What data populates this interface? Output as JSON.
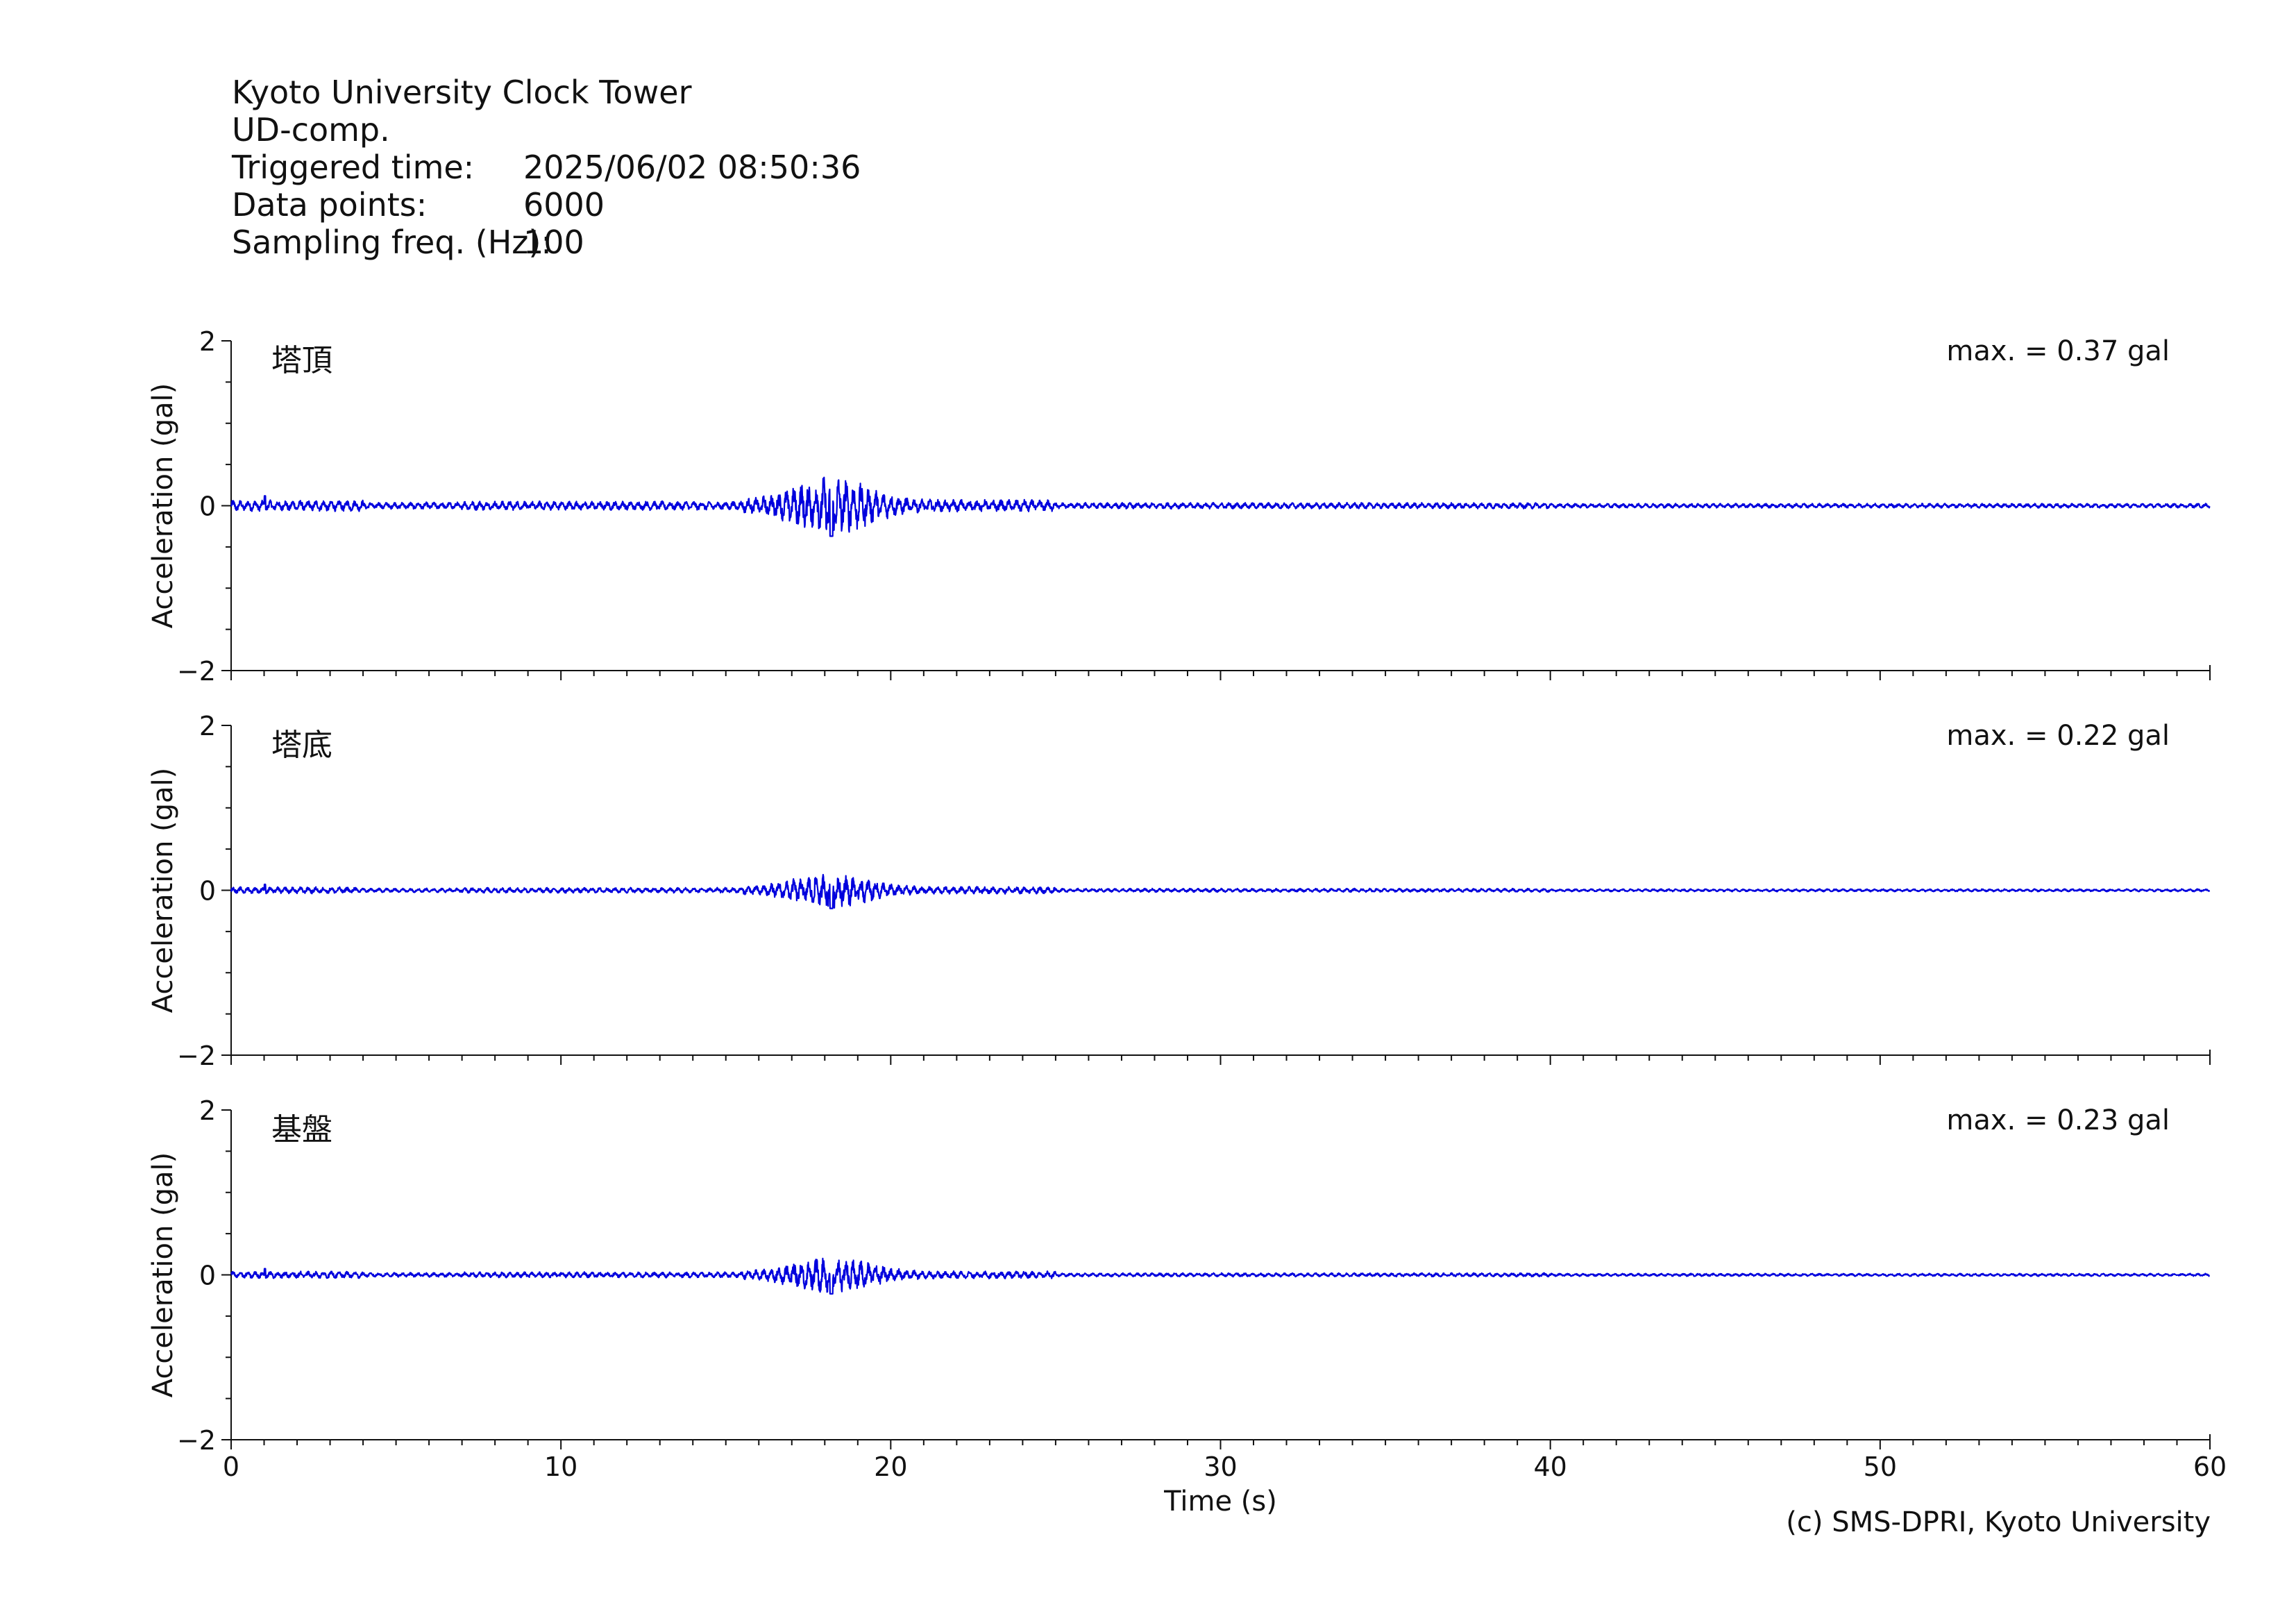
{
  "header": {
    "station": "Kyoto University Clock Tower",
    "component": "UD-comp.",
    "triggered_label": "Triggered time:",
    "triggered_value": "2025/06/02 08:50:36",
    "points_label": "Data points:",
    "points_value": "6000",
    "freq_label": "Sampling freq. (Hz):",
    "freq_value": "100"
  },
  "credit": "(c) SMS-DPRI, Kyoto University",
  "chart_data": {
    "type": "line",
    "color": "#0000dd",
    "xlabel": "Time (s)",
    "ylabel": "Acceleration (gal)",
    "xlim": [
      0,
      60
    ],
    "ylim": [
      -2,
      2
    ],
    "x_ticks": [
      0,
      10,
      20,
      30,
      40,
      50,
      60
    ],
    "y_ticks": [
      -2,
      0,
      2
    ],
    "y_tick_labels": [
      "−2",
      "0",
      "2"
    ],
    "panels": [
      {
        "name": "塔頂",
        "max_label": "max. = 0.37 gal",
        "max_value": 0.37
      },
      {
        "name": "塔底",
        "max_label": "max. = 0.22 gal",
        "max_value": 0.22
      },
      {
        "name": "基盤",
        "max_label": "max. = 0.23 gal",
        "max_value": 0.23
      }
    ]
  }
}
